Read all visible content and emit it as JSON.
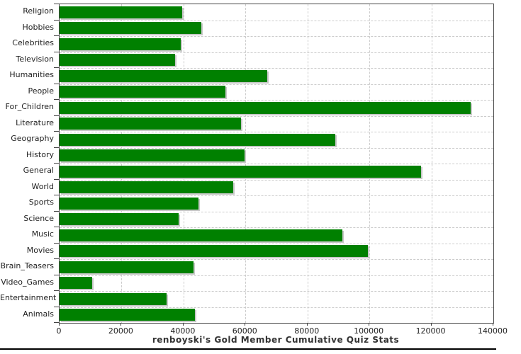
{
  "chart_data": {
    "type": "bar",
    "orientation": "horizontal",
    "title": "renboyski's Gold Member Cumulative Quiz Stats",
    "categories": [
      "Religion",
      "Hobbies",
      "Celebrities",
      "Television",
      "Humanities",
      "People",
      "For_Children",
      "Literature",
      "Geography",
      "History",
      "General",
      "World",
      "Sports",
      "Science",
      "Music",
      "Movies",
      "Brain_Teasers",
      "Video_Games",
      "Entertainment",
      "Animals"
    ],
    "values": [
      39500,
      45800,
      39100,
      37300,
      67000,
      53500,
      132700,
      58600,
      88900,
      59700,
      116700,
      56100,
      44900,
      38400,
      91200,
      99600,
      43200,
      10500,
      34600,
      43700
    ],
    "xlabel": "",
    "ylabel": "",
    "xlim": [
      0,
      140000
    ],
    "x_ticks": [
      0,
      20000,
      40000,
      60000,
      80000,
      100000,
      120000,
      140000
    ],
    "x_tick_labels": [
      "0",
      "20000",
      "40000",
      "60000",
      "80000",
      "100000",
      "120000",
      "140000"
    ],
    "grid": "dashed",
    "legend": "none",
    "bar_color": "#008000",
    "shadow_color": "#c8c8c8",
    "grid_color": "#cccccc",
    "plot_border_color": "#444444",
    "text_color": "#222222",
    "background_color": "#ffffff"
  }
}
